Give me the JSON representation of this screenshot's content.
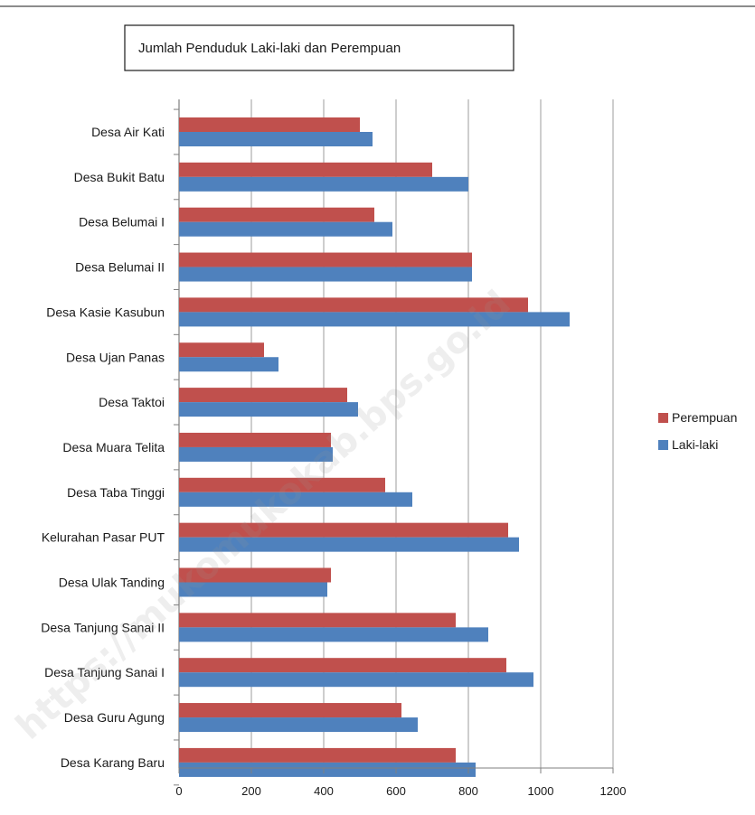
{
  "chart_data": {
    "type": "bar",
    "orientation": "horizontal",
    "title": "Jumlah Penduduk Laki-laki dan Perempuan",
    "categories": [
      "Desa Air Kati",
      "Desa Bukit Batu",
      "Desa Belumai I",
      "Desa Belumai II",
      "Desa Kasie Kasubun",
      "Desa Ujan Panas",
      "Desa Taktoi",
      "Desa Muara Telita",
      "Desa Taba Tinggi",
      "Kelurahan Pasar PUT",
      "Desa Ulak Tanding",
      "Desa Tanjung Sanai II",
      "Desa Tanjung Sanai I",
      "Desa Guru Agung",
      "Desa Karang Baru"
    ],
    "series": [
      {
        "name": "Perempuan",
        "color": "#c0504d",
        "values": [
          500,
          700,
          540,
          810,
          965,
          235,
          465,
          420,
          570,
          910,
          420,
          765,
          905,
          615,
          765
        ]
      },
      {
        "name": "Laki-laki",
        "color": "#4f81bd",
        "values": [
          535,
          800,
          590,
          810,
          1080,
          275,
          495,
          425,
          645,
          940,
          410,
          855,
          980,
          660,
          820
        ]
      }
    ],
    "xlim": [
      0,
      1200
    ],
    "xticks": [
      0,
      200,
      400,
      600,
      800,
      1000,
      1200
    ],
    "grid": true,
    "legend_position": "right"
  },
  "watermark": "https://mukomukokab.bps.go.id"
}
